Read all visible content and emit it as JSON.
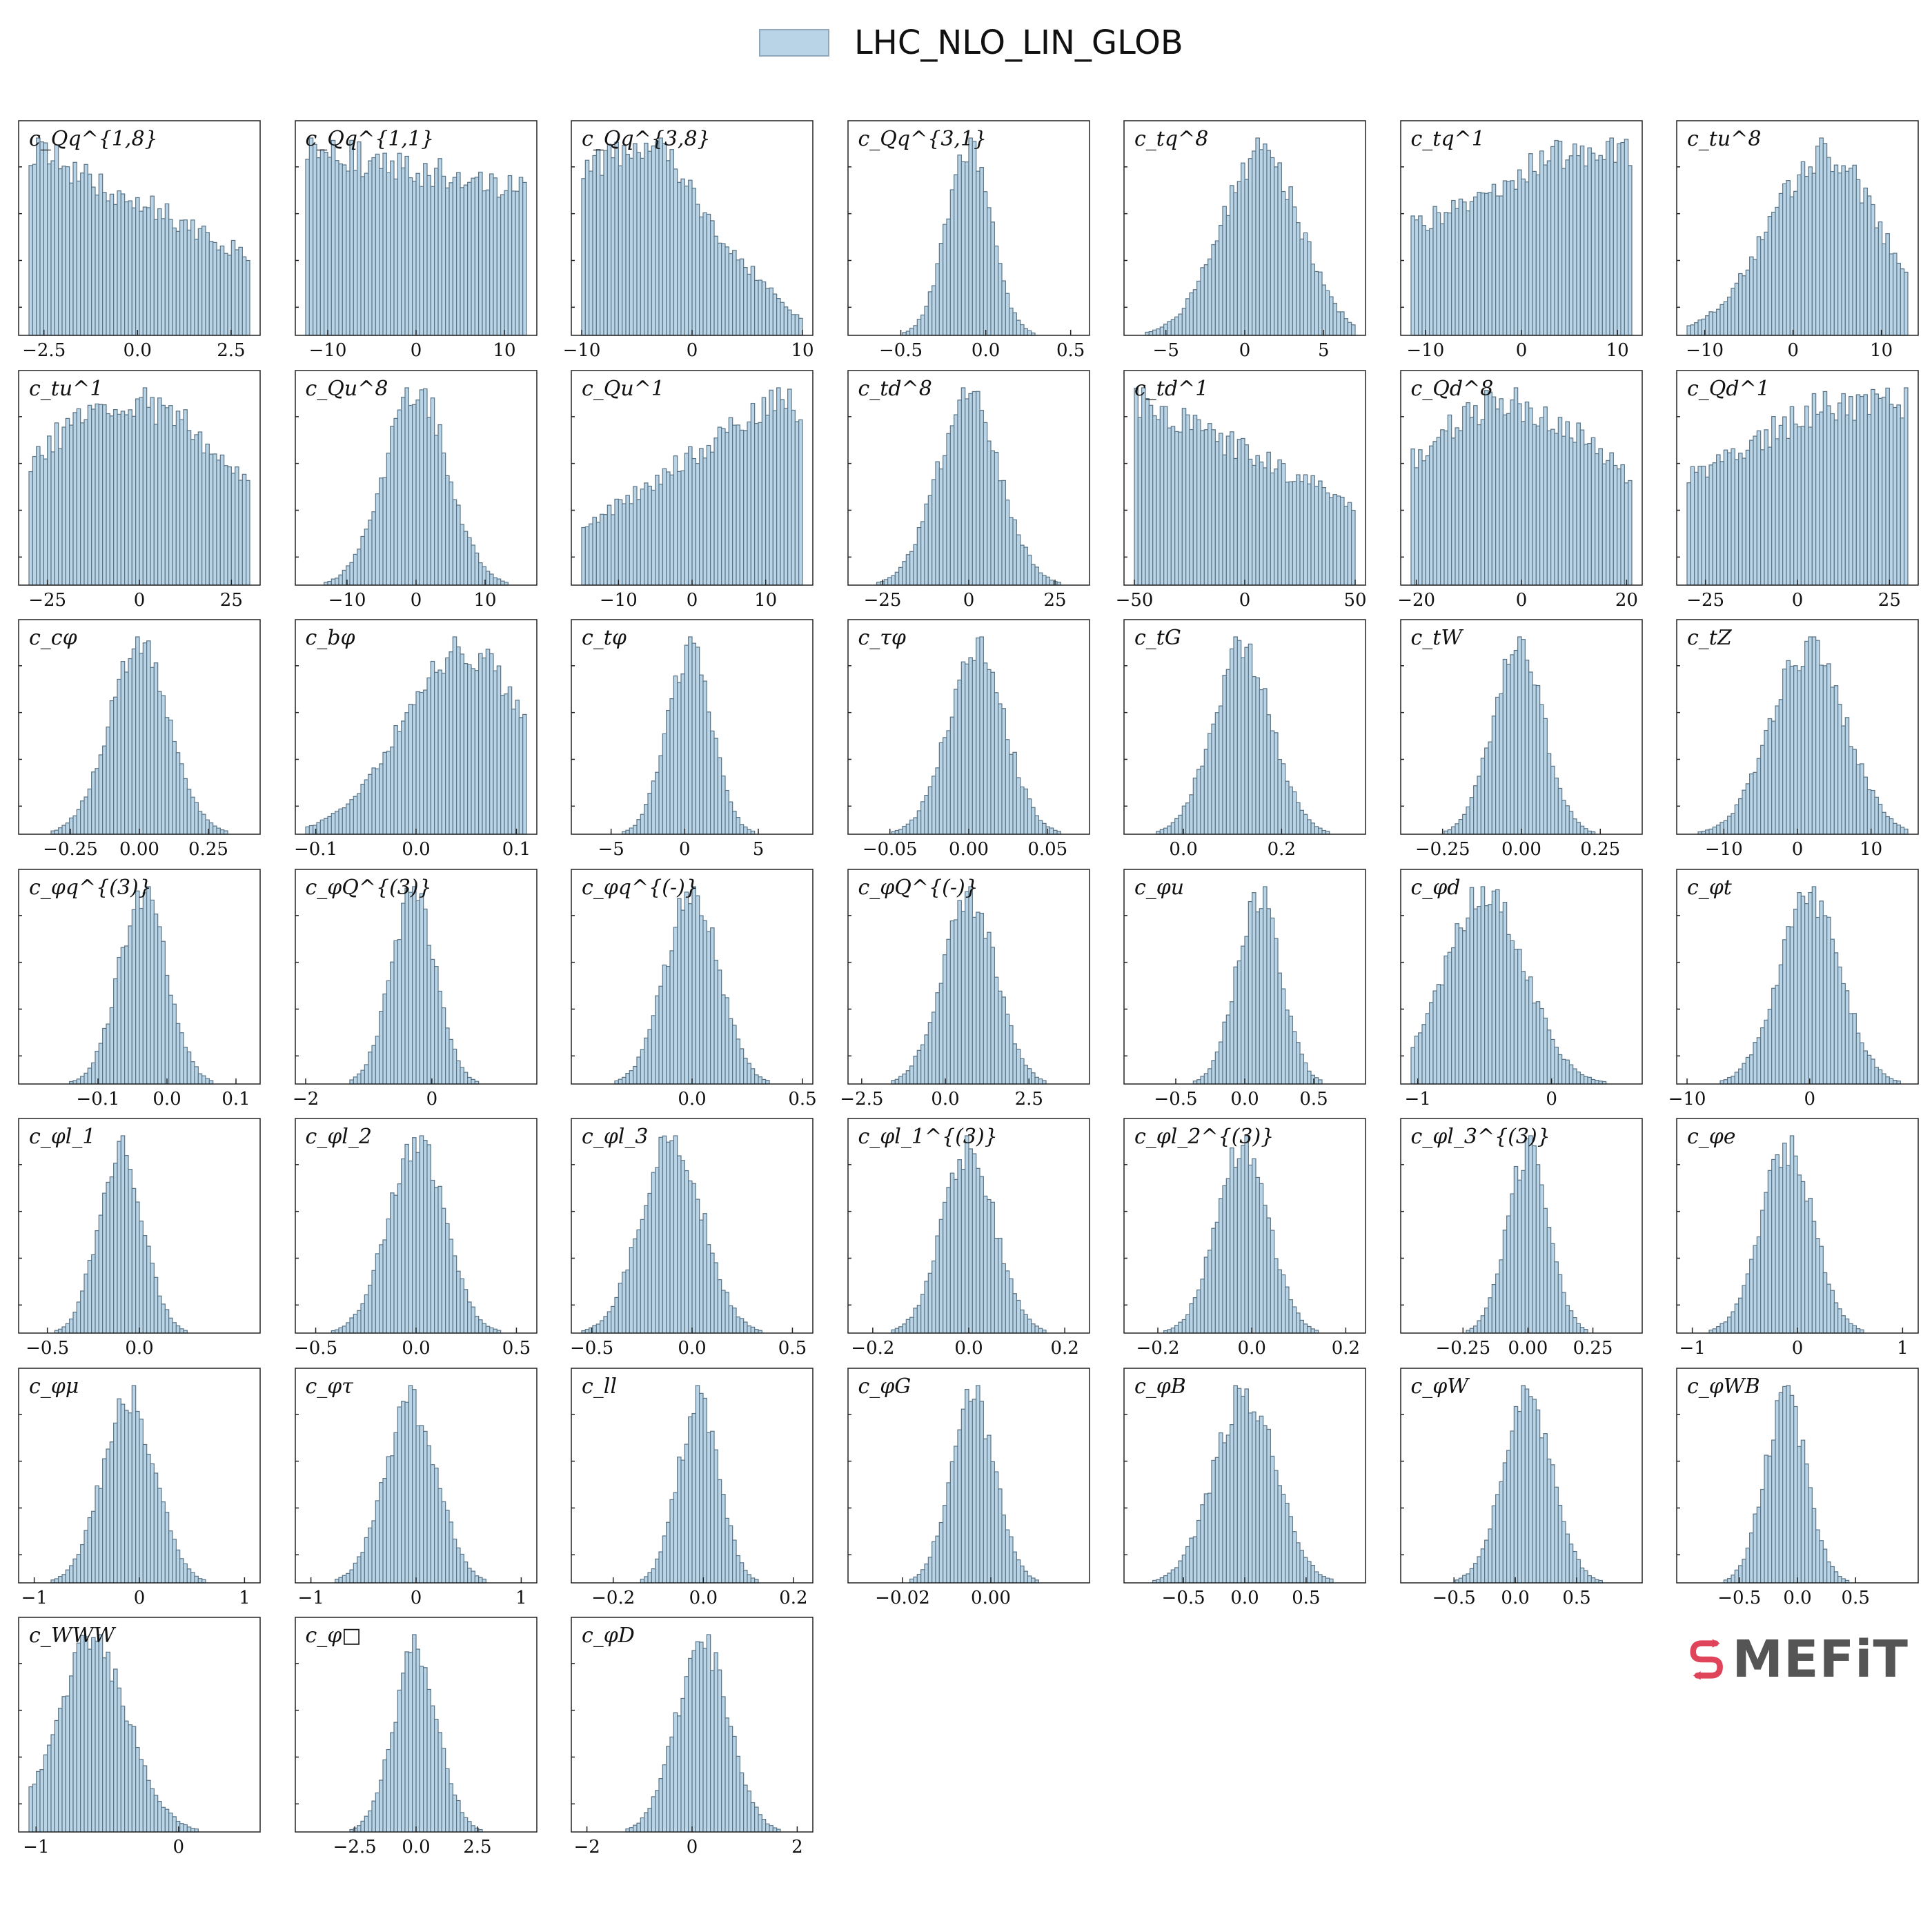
{
  "legend": {
    "label": "LHC_NLO_LIN_GLOB",
    "color": "#b9d4e6"
  },
  "logo": {
    "text": "MEFiT",
    "mark_color": "#e0445a"
  },
  "chart_data": [
    {
      "type": "histogram",
      "label": "c_Qq^{1,8}",
      "shape": "falling",
      "range": [
        -2.9,
        3.0
      ],
      "ticks": [
        [
          "-2.5",
          -2.5
        ],
        [
          "0.0",
          0
        ],
        [
          "2.5",
          2.5
        ]
      ]
    },
    {
      "type": "histogram",
      "label": "c_Qq^{1,1}",
      "shape": "flatdown",
      "range": [
        -12.5,
        12.5
      ],
      "ticks": [
        [
          "-10",
          -10
        ],
        [
          "0",
          0
        ],
        [
          "10",
          10
        ]
      ]
    },
    {
      "type": "histogram",
      "label": "c_Qq^{3,8}",
      "shape": "humpleft",
      "range": [
        -10,
        10
      ],
      "ticks": [
        [
          "-10",
          -10
        ],
        [
          "0",
          0
        ],
        [
          "10",
          10
        ]
      ]
    },
    {
      "type": "histogram",
      "label": "c_Qq^{3,1}",
      "shape": "gauss",
      "mu": -0.1,
      "sigma": 0.13,
      "range": [
        -0.75,
        0.55
      ],
      "ticks": [
        [
          "-0.5",
          -0.5
        ],
        [
          "0.0",
          0
        ],
        [
          "0.5",
          0.5
        ]
      ]
    },
    {
      "type": "histogram",
      "label": "c_tq^8",
      "shape": "gauss",
      "mu": 1.0,
      "sigma": 2.5,
      "range": [
        -7,
        7
      ],
      "ticks": [
        [
          "-5",
          -5
        ],
        [
          "0",
          0
        ],
        [
          "5",
          5
        ]
      ]
    },
    {
      "type": "histogram",
      "label": "c_tq^1",
      "shape": "flatup",
      "range": [
        -11.5,
        11.5
      ],
      "ticks": [
        [
          "-10",
          -10
        ],
        [
          "0",
          0
        ],
        [
          "10",
          10
        ]
      ]
    },
    {
      "type": "histogram",
      "label": "c_tu^8",
      "shape": "risingpeak",
      "range": [
        -12,
        13
      ],
      "ticks": [
        [
          "-10",
          -10
        ],
        [
          "0",
          0
        ],
        [
          "10",
          10
        ]
      ]
    },
    {
      "type": "histogram",
      "label": "c_tu^1",
      "shape": "broad",
      "range": [
        -30,
        30
      ],
      "ticks": [
        [
          "-25",
          -25
        ],
        [
          "0",
          0
        ],
        [
          "25",
          25
        ]
      ]
    },
    {
      "type": "histogram",
      "label": "c_Qu^8",
      "shape": "gauss",
      "mu": 0,
      "sigma": 4.5,
      "range": [
        -16,
        16
      ],
      "ticks": [
        [
          "-10",
          -10
        ],
        [
          "0",
          0
        ],
        [
          "10",
          10
        ]
      ]
    },
    {
      "type": "histogram",
      "label": "c_Qu^1",
      "shape": "rising",
      "range": [
        -15,
        15
      ],
      "ticks": [
        [
          "-10",
          -10
        ],
        [
          "0",
          0
        ],
        [
          "10",
          10
        ]
      ]
    },
    {
      "type": "histogram",
      "label": "c_td^8",
      "shape": "gauss",
      "mu": 0,
      "sigma": 9,
      "range": [
        -32,
        32
      ],
      "ticks": [
        [
          "-25",
          -25
        ],
        [
          "0",
          0
        ],
        [
          "25",
          25
        ]
      ]
    },
    {
      "type": "histogram",
      "label": "c_td^1",
      "shape": "falling",
      "range": [
        -50,
        50
      ],
      "ticks": [
        [
          "-50",
          -50
        ],
        [
          "0",
          0
        ],
        [
          "50",
          50
        ]
      ]
    },
    {
      "type": "histogram",
      "label": "c_Qd^8",
      "shape": "broad",
      "range": [
        -21,
        21
      ],
      "ticks": [
        [
          "-20",
          -20
        ],
        [
          "0",
          0
        ],
        [
          "20",
          20
        ]
      ]
    },
    {
      "type": "histogram",
      "label": "c_Qd^1",
      "shape": "flatup",
      "range": [
        -30,
        30
      ],
      "ticks": [
        [
          "-25",
          -25
        ],
        [
          "0",
          0
        ],
        [
          "25",
          25
        ]
      ]
    },
    {
      "type": "histogram",
      "label": "c_cφ",
      "shape": "gauss",
      "mu": 0,
      "sigma": 0.11,
      "range": [
        -0.4,
        0.4
      ],
      "ticks": [
        [
          "-0.25",
          -0.25
        ],
        [
          "0.00",
          0
        ],
        [
          "0.25",
          0.25
        ]
      ]
    },
    {
      "type": "histogram",
      "label": "c_bφ",
      "shape": "skewleft",
      "range": [
        -0.11,
        0.11
      ],
      "ticks": [
        [
          "-0.1",
          -0.1
        ],
        [
          "0.0",
          0
        ],
        [
          "0.1",
          0.1
        ]
      ]
    },
    {
      "type": "histogram",
      "label": "c_tφ",
      "shape": "gauss",
      "mu": 0.3,
      "sigma": 1.5,
      "range": [
        -7,
        8
      ],
      "ticks": [
        [
          "-5",
          -5
        ],
        [
          "0",
          0
        ],
        [
          "5",
          5
        ]
      ]
    },
    {
      "type": "histogram",
      "label": "c_τφ",
      "shape": "gauss",
      "mu": 0.005,
      "sigma": 0.018,
      "range": [
        -0.07,
        0.07
      ],
      "ticks": [
        [
          "-0.05",
          -0.05
        ],
        [
          "0.00",
          0
        ],
        [
          "0.05",
          0.05
        ]
      ]
    },
    {
      "type": "histogram",
      "label": "c_tG",
      "shape": "gauss",
      "mu": 0.12,
      "sigma": 0.06,
      "range": [
        -0.1,
        0.35
      ],
      "ticks": [
        [
          "0.0",
          0
        ],
        [
          "0.2",
          0.2
        ]
      ]
    },
    {
      "type": "histogram",
      "label": "c_tW",
      "shape": "gauss",
      "mu": -0.01,
      "sigma": 0.08,
      "range": [
        -0.35,
        0.35
      ],
      "ticks": [
        [
          "-0.25",
          -0.25
        ],
        [
          "0.00",
          0
        ],
        [
          "0.25",
          0.25
        ]
      ]
    },
    {
      "type": "histogram",
      "label": "c_tZ",
      "shape": "gauss",
      "mu": 1.5,
      "sigma": 5,
      "range": [
        -15,
        15
      ],
      "ticks": [
        [
          "-10",
          -10
        ],
        [
          "0",
          0
        ],
        [
          "10",
          10
        ]
      ]
    },
    {
      "type": "histogram",
      "label": "c_φq^{(3)}",
      "shape": "gauss",
      "mu": -0.035,
      "sigma": 0.035,
      "range": [
        -0.2,
        0.12
      ],
      "ticks": [
        [
          "-0.1",
          -0.1
        ],
        [
          "0.0",
          0
        ],
        [
          "0.1",
          0.1
        ]
      ]
    },
    {
      "type": "histogram",
      "label": "c_φQ^{(3)}",
      "shape": "gauss",
      "mu": -0.3,
      "sigma": 0.35,
      "range": [
        -2,
        1.5
      ],
      "ticks": [
        [
          "-2",
          -2
        ],
        [
          "0",
          0
        ]
      ]
    },
    {
      "type": "histogram",
      "label": "c_φq^{(-)}",
      "shape": "gauss",
      "mu": 0,
      "sigma": 0.12,
      "range": [
        -0.5,
        0.5
      ],
      "ticks": [
        [
          "0.0",
          0
        ],
        [
          "0.5",
          0.5
        ]
      ]
    },
    {
      "type": "histogram",
      "label": "c_φQ^{(-)}",
      "shape": "gauss",
      "mu": 0.7,
      "sigma": 0.8,
      "range": [
        -2.6,
        4
      ],
      "ticks": [
        [
          "-2.5",
          -2.5
        ],
        [
          "0.0",
          0
        ],
        [
          "2.5",
          2.5
        ]
      ]
    },
    {
      "type": "histogram",
      "label": "c_φu",
      "shape": "gauss",
      "mu": 0.1,
      "sigma": 0.16,
      "range": [
        -0.8,
        0.8
      ],
      "ticks": [
        [
          "-0.5",
          -0.5
        ],
        [
          "0.0",
          0
        ],
        [
          "0.5",
          0.5
        ]
      ]
    },
    {
      "type": "histogram",
      "label": "c_φd",
      "shape": "gauss",
      "mu": -0.5,
      "sigma": 0.3,
      "range": [
        -1.05,
        0.6
      ],
      "ticks": [
        [
          "-1",
          -1
        ],
        [
          "0",
          0
        ]
      ]
    },
    {
      "type": "histogram",
      "label": "c_φt",
      "shape": "gauss",
      "mu": 0,
      "sigma": 2.5,
      "range": [
        -10,
        8
      ],
      "ticks": [
        [
          "-10",
          -10
        ],
        [
          "0",
          0
        ]
      ]
    },
    {
      "type": "histogram",
      "label": "c_φl_1",
      "shape": "gauss",
      "mu": -0.1,
      "sigma": 0.12,
      "range": [
        -0.6,
        0.6
      ],
      "ticks": [
        [
          "-0.5",
          -0.5
        ],
        [
          "0.0",
          0
        ]
      ]
    },
    {
      "type": "histogram",
      "label": "c_φl_2",
      "shape": "gauss",
      "mu": 0,
      "sigma": 0.14,
      "range": [
        -0.55,
        0.55
      ],
      "ticks": [
        [
          "-0.5",
          -0.5
        ],
        [
          "0.0",
          0
        ],
        [
          "0.5",
          0.5
        ]
      ]
    },
    {
      "type": "histogram",
      "label": "c_φl_3",
      "shape": "gauss",
      "mu": -0.1,
      "sigma": 0.15,
      "range": [
        -0.55,
        0.55
      ],
      "ticks": [
        [
          "-0.5",
          -0.5
        ],
        [
          "0.0",
          0
        ],
        [
          "0.5",
          0.5
        ]
      ]
    },
    {
      "type": "histogram",
      "label": "c_φl_1^{(3)}",
      "shape": "gauss",
      "mu": 0,
      "sigma": 0.055,
      "range": [
        -0.23,
        0.23
      ],
      "ticks": [
        [
          "-0.2",
          -0.2
        ],
        [
          "0.0",
          0
        ],
        [
          "0.2",
          0.2
        ]
      ]
    },
    {
      "type": "histogram",
      "label": "c_φl_2^{(3)}",
      "shape": "gauss",
      "mu": -0.02,
      "sigma": 0.055,
      "range": [
        -0.25,
        0.22
      ],
      "ticks": [
        [
          "-0.2",
          -0.2
        ],
        [
          "0.0",
          0
        ],
        [
          "0.2",
          0.2
        ]
      ]
    },
    {
      "type": "histogram",
      "label": "c_φl_3^{(3)}",
      "shape": "gauss",
      "mu": 0,
      "sigma": 0.08,
      "range": [
        -0.45,
        0.4
      ],
      "ticks": [
        [
          "-0.25",
          -0.25
        ],
        [
          "0.00",
          0
        ],
        [
          "0.25",
          0.25
        ]
      ]
    },
    {
      "type": "histogram",
      "label": "c_φe",
      "shape": "gauss",
      "mu": -0.1,
      "sigma": 0.25,
      "range": [
        -1.05,
        1.05
      ],
      "ticks": [
        [
          "-1",
          -1
        ],
        [
          "0",
          0
        ],
        [
          "1",
          1
        ]
      ]
    },
    {
      "type": "histogram",
      "label": "c_φμ",
      "shape": "gauss",
      "mu": -0.1,
      "sigma": 0.25,
      "range": [
        -1.05,
        1.05
      ],
      "ticks": [
        [
          "-1",
          -1
        ],
        [
          "0",
          0
        ],
        [
          "1",
          1
        ]
      ]
    },
    {
      "type": "histogram",
      "label": "c_φτ",
      "shape": "gauss",
      "mu": -0.05,
      "sigma": 0.25,
      "range": [
        -1.05,
        1.05
      ],
      "ticks": [
        [
          "-1",
          -1
        ],
        [
          "0",
          0
        ],
        [
          "1",
          1
        ]
      ]
    },
    {
      "type": "histogram",
      "label": "c_ll",
      "shape": "gauss",
      "mu": -0.01,
      "sigma": 0.045,
      "range": [
        -0.27,
        0.22
      ],
      "ticks": [
        [
          "-0.2",
          -0.2
        ],
        [
          "0.0",
          0
        ],
        [
          "0.2",
          0.2
        ]
      ]
    },
    {
      "type": "histogram",
      "label": "c_φG",
      "shape": "gauss",
      "mu": -0.004,
      "sigma": 0.005,
      "range": [
        -0.03,
        0.02
      ],
      "ticks": [
        [
          "-0.02",
          -0.02
        ],
        [
          "0.00",
          0
        ]
      ]
    },
    {
      "type": "histogram",
      "label": "c_φB",
      "shape": "gauss",
      "mu": 0,
      "sigma": 0.25,
      "range": [
        -0.9,
        0.9
      ],
      "ticks": [
        [
          "-0.5",
          -0.5
        ],
        [
          "0.0",
          0
        ],
        [
          "0.5",
          0.5
        ]
      ]
    },
    {
      "type": "histogram",
      "label": "c_φW",
      "shape": "gauss",
      "mu": 0.1,
      "sigma": 0.2,
      "range": [
        -0.85,
        0.95
      ],
      "ticks": [
        [
          "-0.5",
          -0.5
        ],
        [
          "0.0",
          0
        ],
        [
          "0.5",
          0.5
        ]
      ]
    },
    {
      "type": "histogram",
      "label": "c_φWB",
      "shape": "gauss",
      "mu": -0.1,
      "sigma": 0.18,
      "range": [
        -0.95,
        0.95
      ],
      "ticks": [
        [
          "-0.5",
          -0.5
        ],
        [
          "0.0",
          0
        ],
        [
          "0.5",
          0.5
        ]
      ]
    },
    {
      "type": "histogram",
      "label": "c_WWW",
      "shape": "gauss",
      "mu": -0.6,
      "sigma": 0.25,
      "range": [
        -1.05,
        0.5
      ],
      "ticks": [
        [
          "-1",
          -1
        ],
        [
          "0",
          0
        ]
      ]
    },
    {
      "type": "histogram",
      "label": "c_φ□",
      "shape": "gauss",
      "mu": 0,
      "sigma": 0.9,
      "range": [
        -4.5,
        4.5
      ],
      "ticks": [
        [
          "-2.5",
          -2.5
        ],
        [
          "0.0",
          0
        ],
        [
          "2.5",
          2.5
        ]
      ]
    },
    {
      "type": "histogram",
      "label": "c_φD",
      "shape": "gauss",
      "mu": 0.2,
      "sigma": 0.5,
      "range": [
        -2.1,
        2.1
      ],
      "ticks": [
        [
          "-2",
          -2
        ],
        [
          "0",
          0
        ],
        [
          "2",
          2
        ]
      ]
    }
  ]
}
